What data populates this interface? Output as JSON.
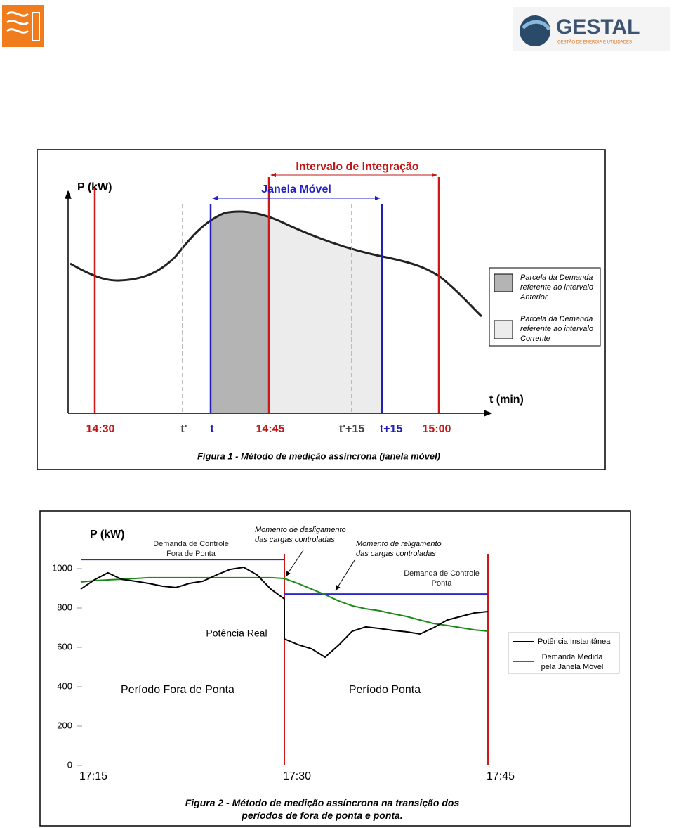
{
  "logo": {
    "name": "GESTAL",
    "tagline": "GESTÃO DE ENERGIA E UTILIDADES"
  },
  "figure1": {
    "y_label": "P (kW)",
    "x_label": "t (min)",
    "interval_label": "Intervalo de Integração",
    "window_label": "Janela Móvel",
    "ticks": [
      "14:30",
      "t'",
      "t",
      "14:45",
      "t'+15",
      "t+15",
      "15:00"
    ],
    "legend": [
      "Parcela da Demanda\nreferente ao intervalo\nAnterior",
      "Parcela da Demanda\nreferente ao intervalo\nCorrente"
    ],
    "caption": "Figura 1 - Método de medição assíncrona (janela móvel)"
  },
  "chart_data": {
    "type": "line",
    "y_label": "P (kW)",
    "xlim": [
      "17:15",
      "17:45"
    ],
    "xticks": [
      "17:15",
      "17:30",
      "17:45"
    ],
    "ylim": [
      0,
      1000
    ],
    "yticks": [
      0,
      200,
      400,
      600,
      800,
      1000
    ],
    "series": [
      {
        "name": "Potência Instantânea",
        "color": "#000000",
        "x": [
          "17:15",
          "17:16",
          "17:17",
          "17:18",
          "17:19",
          "17:20",
          "17:21",
          "17:22",
          "17:23",
          "17:24",
          "17:25",
          "17:26",
          "17:27",
          "17:28",
          "17:29",
          "17:30",
          "17:30",
          "17:31",
          "17:32",
          "17:33",
          "17:34",
          "17:35",
          "17:36",
          "17:37",
          "17:38",
          "17:39",
          "17:40",
          "17:41",
          "17:42",
          "17:43",
          "17:44",
          "17:45"
        ],
        "values": [
          896,
          943,
          979,
          946,
          936,
          925,
          911,
          904,
          925,
          936,
          968,
          996,
          1007,
          968,
          896,
          846,
          643,
          614,
          593,
          550,
          611,
          682,
          704,
          696,
          686,
          679,
          668,
          700,
          739,
          757,
          775,
          782
        ]
      },
      {
        "name": "Demanda Medida\npela Janela Móvel",
        "color": "#1a8a1a",
        "x": [
          "17:15",
          "17:16",
          "17:17",
          "17:18",
          "17:19",
          "17:20",
          "17:21",
          "17:22",
          "17:23",
          "17:24",
          "17:25",
          "17:26",
          "17:27",
          "17:28",
          "17:29",
          "17:30",
          "17:31",
          "17:32",
          "17:33",
          "17:34",
          "17:35",
          "17:36",
          "17:37",
          "17:38",
          "17:39",
          "17:40",
          "17:41",
          "17:42",
          "17:43",
          "17:44",
          "17:45"
        ],
        "values": [
          932,
          939,
          943,
          946,
          950,
          954,
          954,
          954,
          954,
          954,
          954,
          954,
          954,
          954,
          954,
          950,
          925,
          896,
          868,
          836,
          811,
          796,
          786,
          771,
          757,
          739,
          721,
          711,
          700,
          689,
          682
        ]
      }
    ],
    "control_lines": [
      {
        "label": "Demanda de Controle\nFora de Ponta",
        "color": "#2a2ad0",
        "x": [
          "17:15",
          "17:30"
        ],
        "values": [
          1046,
          1046
        ]
      },
      {
        "label": "Demanda de Controle\nPonta",
        "color": "#2a2ad0",
        "x": [
          "17:30",
          "17:45"
        ],
        "values": [
          871,
          871
        ]
      }
    ],
    "annotations": [
      "Momento de desligamento\ndas cargas controladas",
      "Momento de religamento\ndas cargas controladas",
      "Potência Real",
      "Período Fora de Ponta",
      "Período Ponta"
    ],
    "caption": "Figura 2 - Método de medição assíncrona na transição dos\nperíodos de fora de ponta e ponta."
  }
}
